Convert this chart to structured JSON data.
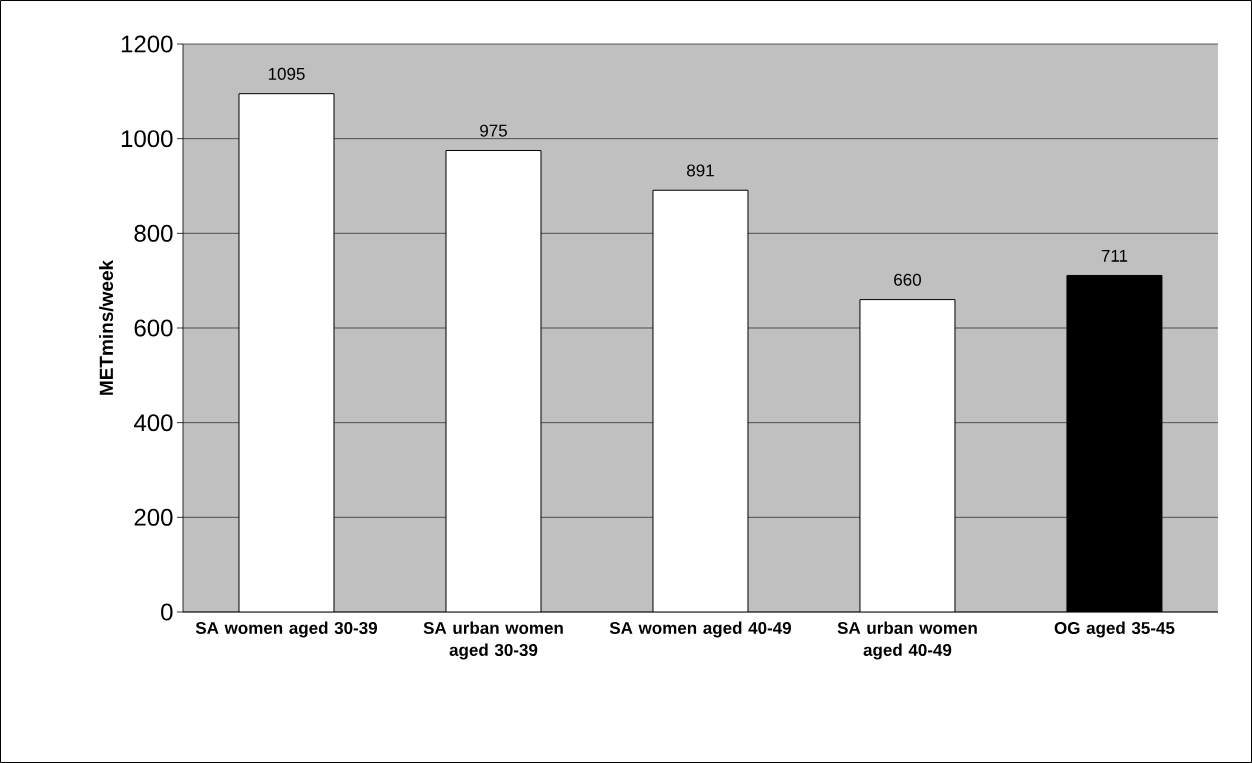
{
  "chart_data": {
    "type": "bar",
    "ylabel": "METmins/week",
    "categories": [
      "SA women aged 30-39",
      "SA urban women aged 30-39",
      "SA women aged 40-49",
      "SA urban women aged 40-49",
      "OG aged 35-45"
    ],
    "values": [
      1095,
      975,
      891,
      660,
      711
    ],
    "colors": [
      "#ffffff",
      "#ffffff",
      "#ffffff",
      "#ffffff",
      "#000000"
    ],
    "ylim": [
      0,
      1200
    ],
    "yticks": [
      0,
      200,
      400,
      600,
      800,
      1000,
      1200
    ],
    "grid": "y",
    "data_labels": true
  }
}
